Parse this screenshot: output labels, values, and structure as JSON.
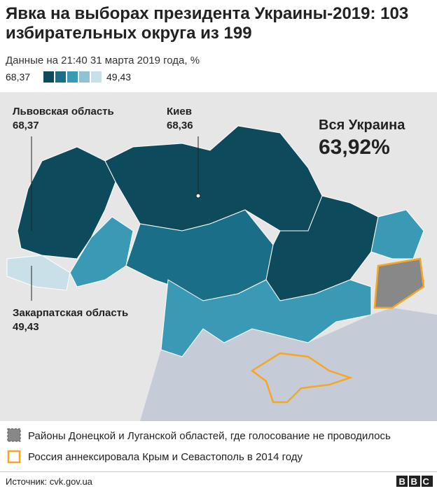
{
  "header": {
    "title": "Явка на выборах президента Украины-2019: 103 избирательных округа из 199",
    "subtitle": "Данные на 21:40 31 марта 2019 года, %",
    "scale_max": "68,37",
    "scale_min": "49,43"
  },
  "map": {
    "labels": [
      {
        "name": "Львовская область",
        "value": "68,37"
      },
      {
        "name": "Киев",
        "value": "68,36"
      },
      {
        "name": "Закарпатская область",
        "value": "49,43"
      }
    ],
    "total": {
      "name": "Вся Украина",
      "value": "63,92%"
    }
  },
  "notes": [
    "Районы Донецкой и Луганской областей, где голосование не проводилось",
    "Россия аннексировала Крым и Севастополь в 2014 году"
  ],
  "footer": {
    "source": "Источник: cvk.gov.ua",
    "logo": "BBC"
  }
}
